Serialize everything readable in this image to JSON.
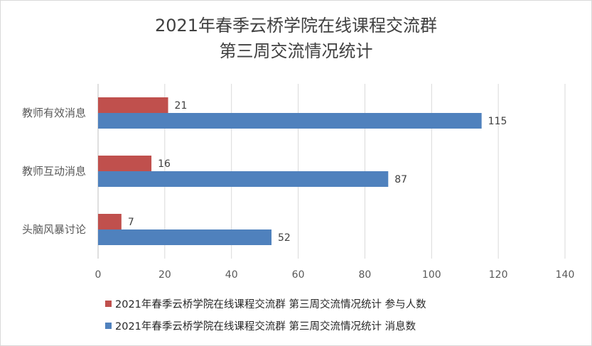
{
  "chart_data": {
    "type": "bar",
    "orientation": "horizontal",
    "title_lines": [
      "2021年春季云桥学院在线课程交流群",
      "第三周交流情况统计"
    ],
    "categories": [
      "教师有效消息",
      "教师互动消息",
      "头脑风暴讨论"
    ],
    "series": [
      {
        "name": "2021年春季云桥学院在线课程交流群 第三周交流情况统计 参与人数",
        "values": [
          21,
          16,
          7
        ],
        "color": "#c0504d"
      },
      {
        "name": "2021年春季云桥学院在线课程交流群 第三周交流情况统计 消息数",
        "values": [
          115,
          87,
          52
        ],
        "color": "#4f81bd"
      }
    ],
    "xlim": [
      0,
      140
    ],
    "xticks": [
      0,
      20,
      40,
      60,
      80,
      100,
      120,
      140
    ],
    "grid": true,
    "legend_position": "bottom"
  }
}
